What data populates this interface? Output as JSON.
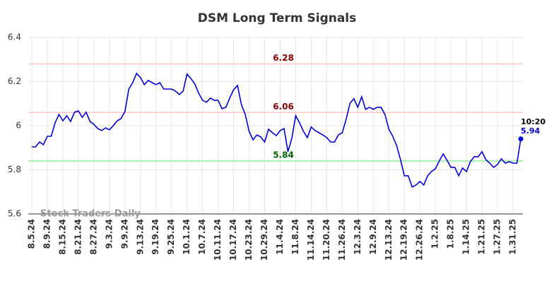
{
  "chart_data": {
    "type": "line",
    "title": "DSM Long Term Signals",
    "watermark": "Stock Traders Daily",
    "last_time": "10:20",
    "categories": [
      "8.5.24",
      null,
      null,
      null,
      "8.9.24",
      null,
      null,
      null,
      "8.15.24",
      null,
      null,
      null,
      "8.21.24",
      null,
      null,
      null,
      "8.27.24",
      null,
      null,
      null,
      "9.3.24",
      null,
      null,
      null,
      "9.9.24",
      null,
      null,
      null,
      "9.13.24",
      null,
      null,
      null,
      "9.19.24",
      null,
      null,
      null,
      "9.25.24",
      null,
      null,
      null,
      "10.1.24",
      null,
      null,
      null,
      "10.7.24",
      null,
      null,
      null,
      "10.11.24",
      null,
      null,
      null,
      "10.17.24",
      null,
      null,
      null,
      "10.23.24",
      null,
      null,
      null,
      "10.29.24",
      null,
      null,
      null,
      "11.4.24",
      null,
      null,
      null,
      "11.8.24",
      null,
      null,
      null,
      "11.14.24",
      null,
      null,
      null,
      "11.20.24",
      null,
      null,
      null,
      "11.26.24",
      null,
      null,
      null,
      "12.3.24",
      null,
      null,
      null,
      "12.9.24",
      null,
      null,
      null,
      "12.13.24",
      null,
      null,
      null,
      "12.19.24",
      null,
      null,
      null,
      "12.26.24",
      null,
      null,
      null,
      "1.2.25",
      null,
      null,
      null,
      "1.8.25",
      null,
      null,
      null,
      "1.14.25",
      null,
      null,
      null,
      "1.21.25",
      null,
      null,
      null,
      "1.27.25",
      null,
      null,
      null,
      "1.31.25",
      null,
      null
    ],
    "series": [
      {
        "color": "#0000dd",
        "values": [
          5.904,
          5.904,
          5.926,
          5.914,
          5.952,
          5.952,
          6.013,
          6.051,
          6.022,
          6.045,
          6.019,
          6.061,
          6.067,
          6.038,
          6.061,
          6.019,
          6.006,
          5.987,
          5.978,
          5.99,
          5.981,
          6.0,
          6.022,
          6.032,
          6.064,
          6.166,
          6.195,
          6.237,
          6.218,
          6.186,
          6.205,
          6.195,
          6.186,
          6.195,
          6.166,
          6.166,
          6.166,
          6.157,
          6.141,
          6.157,
          6.234,
          6.214,
          6.189,
          6.147,
          6.115,
          6.106,
          6.125,
          6.115,
          6.115,
          6.077,
          6.083,
          6.125,
          6.163,
          6.182,
          6.096,
          6.051,
          5.974,
          5.936,
          5.958,
          5.949,
          5.926,
          5.984,
          5.968,
          5.955,
          5.978,
          5.987,
          5.882,
          5.942,
          6.045,
          6.013,
          5.974,
          5.946,
          5.994,
          5.978,
          5.968,
          5.958,
          5.946,
          5.926,
          5.926,
          5.958,
          5.968,
          6.029,
          6.102,
          6.122,
          6.083,
          6.131,
          6.074,
          6.083,
          6.074,
          6.083,
          6.083,
          6.051,
          5.984,
          5.952,
          5.91,
          5.846,
          5.773,
          5.773,
          5.722,
          5.731,
          5.747,
          5.731,
          5.773,
          5.792,
          5.805,
          5.84,
          5.872,
          5.843,
          5.811,
          5.811,
          5.773,
          5.808,
          5.792,
          5.837,
          5.859,
          5.859,
          5.882,
          5.846,
          5.83,
          5.811,
          5.824,
          5.85,
          5.83,
          5.837,
          5.83,
          5.83,
          5.94
        ]
      }
    ],
    "hlines": [
      {
        "value": 6.28,
        "color": "#ffc4c4",
        "label_color": "#8b0000"
      },
      {
        "value": 6.06,
        "color": "#ffc4c4",
        "label_color": "#8b0000"
      },
      {
        "value": 5.84,
        "color": "#90ee90",
        "label_color": "#006400"
      }
    ],
    "ylim": [
      5.6,
      6.4
    ],
    "yticks": [
      5.6,
      5.8,
      6,
      6.2,
      6.4
    ],
    "grid": true
  }
}
